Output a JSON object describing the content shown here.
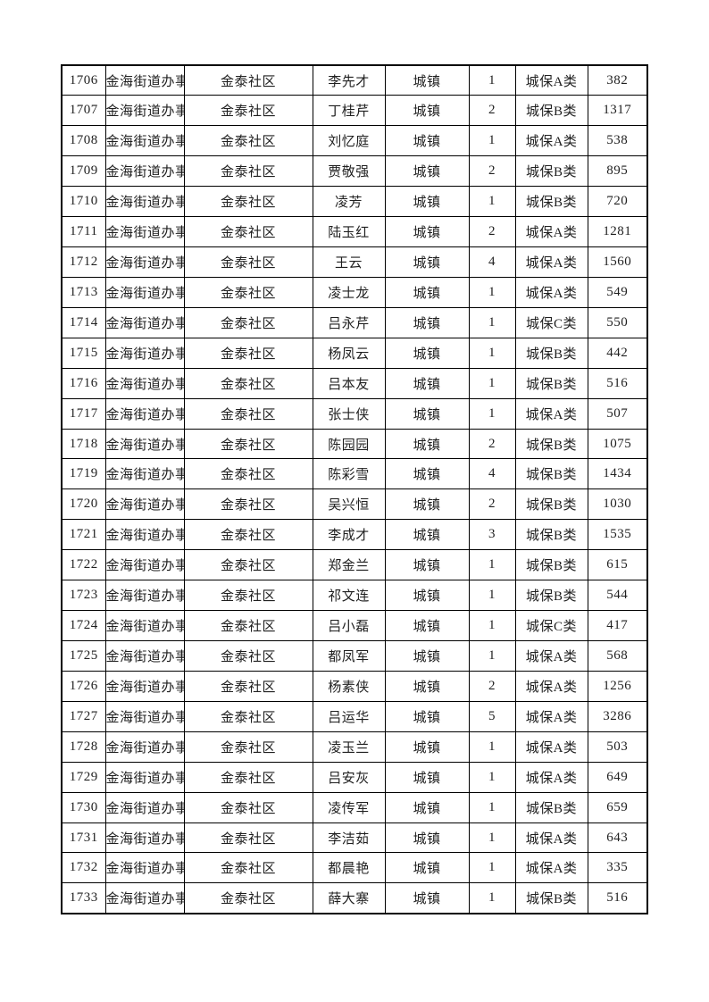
{
  "page": {
    "background": "#ffffff"
  },
  "colors": {
    "border": "#000000",
    "text": "#1f1f1f"
  },
  "table": {
    "row_count": 28,
    "column_semantics": [
      "row-number",
      "street-office",
      "community",
      "person-name",
      "household-type",
      "person-count",
      "insurance-category",
      "amount"
    ],
    "rows": [
      [
        "1706",
        "金海街道办事处",
        "金泰社区",
        "李先才",
        "城镇",
        "1",
        "城保A类",
        "382"
      ],
      [
        "1707",
        "金海街道办事处",
        "金泰社区",
        "丁桂芹",
        "城镇",
        "2",
        "城保B类",
        "1317"
      ],
      [
        "1708",
        "金海街道办事处",
        "金泰社区",
        "刘忆庭",
        "城镇",
        "1",
        "城保A类",
        "538"
      ],
      [
        "1709",
        "金海街道办事处",
        "金泰社区",
        "贾敬强",
        "城镇",
        "2",
        "城保B类",
        "895"
      ],
      [
        "1710",
        "金海街道办事处",
        "金泰社区",
        "凌芳",
        "城镇",
        "1",
        "城保B类",
        "720"
      ],
      [
        "1711",
        "金海街道办事处",
        "金泰社区",
        "陆玉红",
        "城镇",
        "2",
        "城保A类",
        "1281"
      ],
      [
        "1712",
        "金海街道办事处",
        "金泰社区",
        "王云",
        "城镇",
        "4",
        "城保A类",
        "1560"
      ],
      [
        "1713",
        "金海街道办事处",
        "金泰社区",
        "凌士龙",
        "城镇",
        "1",
        "城保A类",
        "549"
      ],
      [
        "1714",
        "金海街道办事处",
        "金泰社区",
        "吕永芹",
        "城镇",
        "1",
        "城保C类",
        "550"
      ],
      [
        "1715",
        "金海街道办事处",
        "金泰社区",
        "杨凤云",
        "城镇",
        "1",
        "城保B类",
        "442"
      ],
      [
        "1716",
        "金海街道办事处",
        "金泰社区",
        "吕本友",
        "城镇",
        "1",
        "城保B类",
        "516"
      ],
      [
        "1717",
        "金海街道办事处",
        "金泰社区",
        "张士侠",
        "城镇",
        "1",
        "城保A类",
        "507"
      ],
      [
        "1718",
        "金海街道办事处",
        "金泰社区",
        "陈园园",
        "城镇",
        "2",
        "城保B类",
        "1075"
      ],
      [
        "1719",
        "金海街道办事处",
        "金泰社区",
        "陈彩雪",
        "城镇",
        "4",
        "城保B类",
        "1434"
      ],
      [
        "1720",
        "金海街道办事处",
        "金泰社区",
        "吴兴恒",
        "城镇",
        "2",
        "城保B类",
        "1030"
      ],
      [
        "1721",
        "金海街道办事处",
        "金泰社区",
        "李成才",
        "城镇",
        "3",
        "城保B类",
        "1535"
      ],
      [
        "1722",
        "金海街道办事处",
        "金泰社区",
        "郑金兰",
        "城镇",
        "1",
        "城保B类",
        "615"
      ],
      [
        "1723",
        "金海街道办事处",
        "金泰社区",
        "祁文连",
        "城镇",
        "1",
        "城保B类",
        "544"
      ],
      [
        "1724",
        "金海街道办事处",
        "金泰社区",
        "吕小磊",
        "城镇",
        "1",
        "城保C类",
        "417"
      ],
      [
        "1725",
        "金海街道办事处",
        "金泰社区",
        "都凤军",
        "城镇",
        "1",
        "城保A类",
        "568"
      ],
      [
        "1726",
        "金海街道办事处",
        "金泰社区",
        "杨素侠",
        "城镇",
        "2",
        "城保A类",
        "1256"
      ],
      [
        "1727",
        "金海街道办事处",
        "金泰社区",
        "吕运华",
        "城镇",
        "5",
        "城保A类",
        "3286"
      ],
      [
        "1728",
        "金海街道办事处",
        "金泰社区",
        "凌玉兰",
        "城镇",
        "1",
        "城保A类",
        "503"
      ],
      [
        "1729",
        "金海街道办事处",
        "金泰社区",
        "吕安灰",
        "城镇",
        "1",
        "城保A类",
        "649"
      ],
      [
        "1730",
        "金海街道办事处",
        "金泰社区",
        "凌传军",
        "城镇",
        "1",
        "城保B类",
        "659"
      ],
      [
        "1731",
        "金海街道办事处",
        "金泰社区",
        "李洁茹",
        "城镇",
        "1",
        "城保A类",
        "643"
      ],
      [
        "1732",
        "金海街道办事处",
        "金泰社区",
        "都晨艳",
        "城镇",
        "1",
        "城保A类",
        "335"
      ],
      [
        "1733",
        "金海街道办事处",
        "金泰社区",
        "薛大寨",
        "城镇",
        "1",
        "城保B类",
        "516"
      ]
    ]
  }
}
